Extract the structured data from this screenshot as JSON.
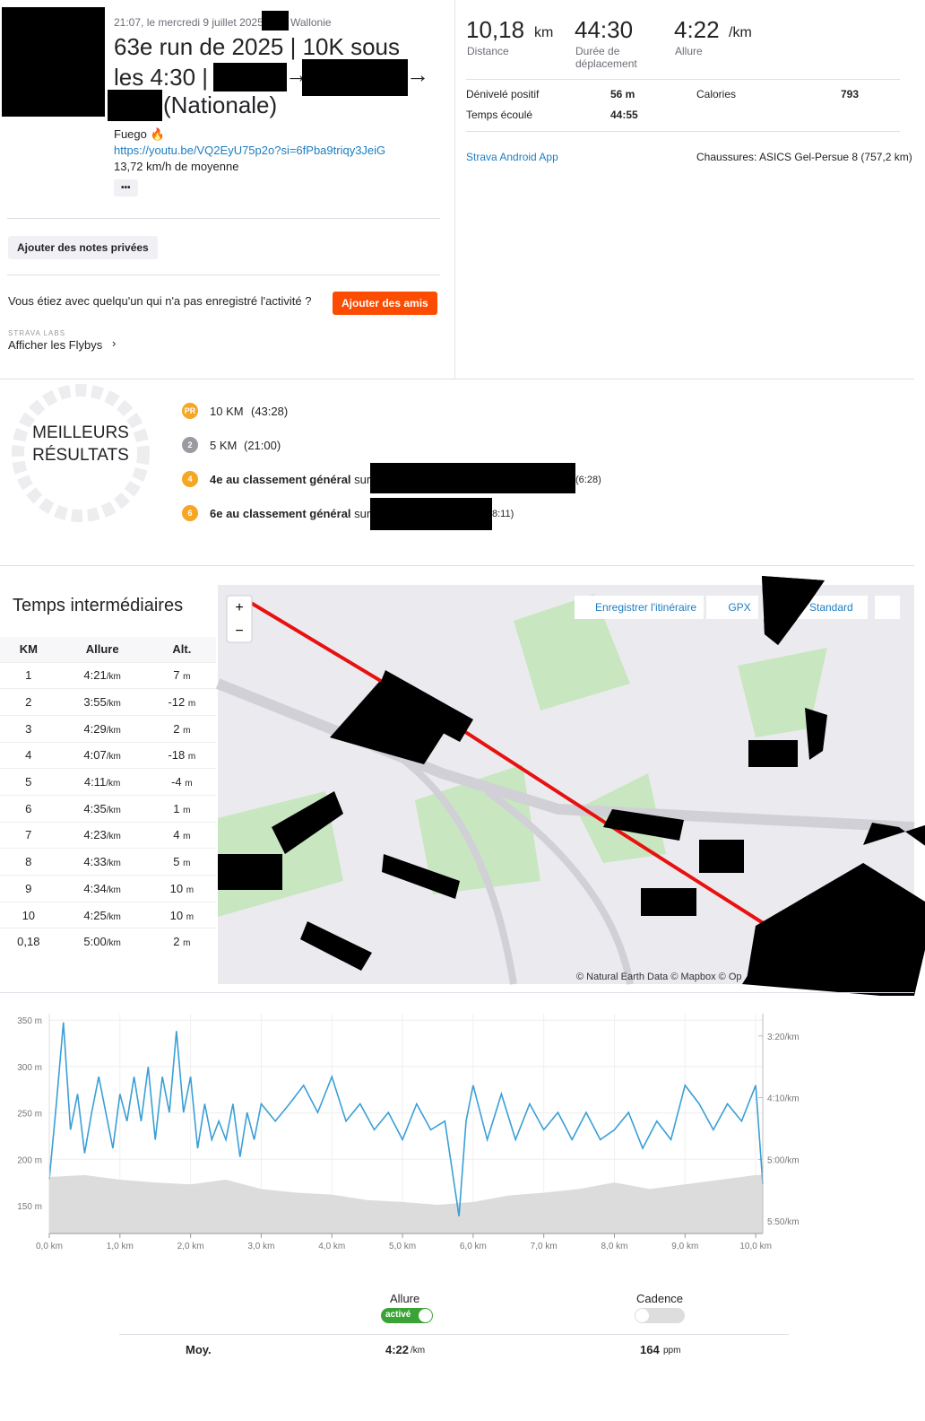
{
  "header": {
    "time": "21:07, le mercredi 9 juillet 2025",
    "region": "Wallonie",
    "title": "63e run de 2025 | 10K sous les 4:30 |",
    "arrow_1": "→",
    "arrow_2": "→",
    "title_end": "(Nationale)",
    "description": "Fuego 🔥",
    "link": "https://youtu.be/VQ2EyU75p2o?si=6fPba9triqy3JeiG",
    "speed": "13,72 km/h de moyenne",
    "more": "•••"
  },
  "actions": {
    "notes": "Ajouter des notes privées",
    "friends_question": "Vous étiez avec quelqu'un qui n'a pas enregistré l'activité ?",
    "friends_button": "Ajouter des amis",
    "labs": "STRAVA LABS",
    "flybys": "Afficher les Flybys"
  },
  "stats": {
    "distance": {
      "value": "10,18",
      "unit": "km",
      "label": "Distance"
    },
    "moving_time": {
      "value": "44:30",
      "label": "Durée de déplacement"
    },
    "pace": {
      "value": "4:22",
      "unit": "/km",
      "label": "Allure"
    },
    "elevation_label": "Dénivelé positif",
    "elevation": "56 m",
    "calories_label": "Calories",
    "calories": "793",
    "elapsed_label": "Temps écoulé",
    "elapsed": "44:55",
    "device": "Strava Android App",
    "shoes": "Chaussures: ASICS Gel-Persue 8 (757,2 km)"
  },
  "achievements": {
    "title_1": "MEILLEURS",
    "title_2": "RÉSULTATS",
    "items": [
      {
        "badge": "PR",
        "name": "10 KM",
        "time": "(43:28)"
      },
      {
        "badge": "2",
        "name": "5 KM",
        "time": "(21:00)"
      },
      {
        "badge": "4",
        "name": "4e au classement général",
        "on": "sur",
        "time": "(6:28)"
      },
      {
        "badge": "6",
        "name": "6e au classement général",
        "on": "sur",
        "time": "8:11)"
      }
    ]
  },
  "splits": {
    "title": "Temps intermédiaires",
    "columns": [
      "KM",
      "Allure",
      "Alt."
    ],
    "pace_unit": "/km",
    "alt_unit": "m",
    "rows": [
      [
        "1",
        "4:21",
        "7"
      ],
      [
        "2",
        "3:55",
        "-12"
      ],
      [
        "3",
        "4:29",
        "2"
      ],
      [
        "4",
        "4:07",
        "-18"
      ],
      [
        "5",
        "4:11",
        "-4"
      ],
      [
        "6",
        "4:35",
        "1"
      ],
      [
        "7",
        "4:23",
        "4"
      ],
      [
        "8",
        "4:33",
        "5"
      ],
      [
        "9",
        "4:34",
        "10"
      ],
      [
        "10",
        "4:25",
        "10"
      ],
      [
        "0,18",
        "5:00",
        "2"
      ]
    ]
  },
  "map": {
    "zoom_in": "+",
    "zoom_out": "−",
    "save_route": "Enregistrer l'itinéraire",
    "gpx": "GPX",
    "style": "Standard",
    "attribution": "© Natural Earth Data © Mapbox © Op"
  },
  "chart_data": {
    "type": "line",
    "xlim": [
      0,
      10.1
    ],
    "xticks": [
      {
        "value": 0,
        "label": "0,0 km"
      },
      {
        "value": 1,
        "label": "1,0 km"
      },
      {
        "value": 2,
        "label": "2,0 km"
      },
      {
        "value": 3,
        "label": "3,0 km"
      },
      {
        "value": 4,
        "label": "4,0 km"
      },
      {
        "value": 5,
        "label": "5,0 km"
      },
      {
        "value": 6,
        "label": "6,0 km"
      },
      {
        "value": 7,
        "label": "7,0 km"
      },
      {
        "value": 8,
        "label": "8,0 km"
      },
      {
        "value": 9,
        "label": "9,0 km"
      },
      {
        "value": 10,
        "label": "10,0 km"
      }
    ],
    "ylim": [
      120,
      357
    ],
    "yticks": [
      {
        "value": 150,
        "label": "150 m"
      },
      {
        "value": 200,
        "label": "200 m"
      },
      {
        "value": 250,
        "label": "250 m"
      },
      {
        "value": 300,
        "label": "300 m"
      },
      {
        "value": 350,
        "label": "350 m"
      }
    ],
    "y2lim": [
      360,
      182
    ],
    "y2ticks": [
      {
        "value": 200,
        "label": "3:20/km"
      },
      {
        "value": 250,
        "label": "4:10/km"
      },
      {
        "value": 300,
        "label": "5:00/km"
      },
      {
        "value": 350,
        "label": "5:50/km"
      }
    ],
    "series": [
      {
        "name": "Altitude",
        "color": "#dcdcdc",
        "x": [
          0,
          0.5,
          1,
          1.5,
          2,
          2.5,
          3,
          3.5,
          4,
          4.5,
          5,
          5.5,
          6,
          6.5,
          7,
          7.5,
          8,
          8.5,
          9,
          9.5,
          10,
          10.1
        ],
        "values": [
          181,
          183,
          178,
          175,
          173,
          178,
          168,
          164,
          162,
          156,
          154,
          151,
          154,
          161,
          164,
          168,
          175,
          168,
          173,
          178,
          183,
          183
        ]
      },
      {
        "name": "Allure",
        "color": "#3a9fd6",
        "axis": "y2",
        "x": [
          0,
          0.1,
          0.2,
          0.3,
          0.4,
          0.5,
          0.6,
          0.7,
          0.8,
          0.9,
          1,
          1.1,
          1.2,
          1.3,
          1.4,
          1.5,
          1.6,
          1.7,
          1.8,
          1.9,
          2,
          2.1,
          2.2,
          2.3,
          2.4,
          2.5,
          2.6,
          2.7,
          2.8,
          2.9,
          3,
          3.2,
          3.4,
          3.6,
          3.8,
          4,
          4.2,
          4.4,
          4.6,
          4.8,
          5,
          5.2,
          5.4,
          5.6,
          5.8,
          5.9,
          6,
          6.2,
          6.4,
          6.6,
          6.8,
          7,
          7.2,
          7.4,
          7.6,
          7.8,
          8,
          8.2,
          8.4,
          8.6,
          8.8,
          9,
          9.2,
          9.4,
          9.6,
          9.8,
          10,
          10.1
        ],
        "values": [
          316,
          255,
          189,
          276,
          247,
          295,
          262,
          233,
          262,
          291,
          247,
          269,
          233,
          269,
          225,
          284,
          233,
          262,
          196,
          262,
          233,
          291,
          255,
          284,
          269,
          284,
          255,
          298,
          262,
          284,
          255,
          269,
          255,
          240,
          262,
          233,
          269,
          255,
          276,
          262,
          284,
          255,
          276,
          269,
          346,
          269,
          240,
          284,
          247,
          284,
          255,
          276,
          262,
          284,
          262,
          284,
          276,
          262,
          291,
          269,
          284,
          240,
          255,
          276,
          255,
          269,
          240,
          320
        ]
      }
    ]
  },
  "summary": {
    "pace_label": "Allure",
    "pace_toggle": "activé",
    "cadence_label": "Cadence",
    "avg_label": "Moy.",
    "avg_pace": "4:22",
    "pace_unit": "/km",
    "avg_cadence": "164",
    "cadence_unit": "ppm"
  }
}
